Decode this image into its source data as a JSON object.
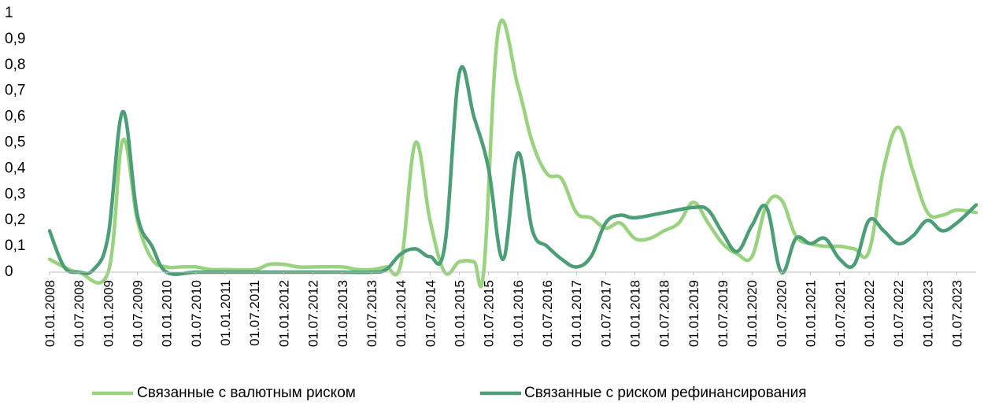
{
  "chart_data": {
    "type": "line",
    "title": "",
    "xlabel": "",
    "ylabel": "",
    "ylim": [
      0,
      1
    ],
    "yticks": [
      "0",
      "0,1",
      "0,2",
      "0,3",
      "0,4",
      "0,5",
      "0,6",
      "0,7",
      "0,8",
      "0,9",
      "1"
    ],
    "x_range": [
      2008.0,
      2023.83
    ],
    "xticks": [
      {
        "x": 2008.0,
        "label": "01.01.2008"
      },
      {
        "x": 2008.5,
        "label": "01.07.2008"
      },
      {
        "x": 2009.0,
        "label": "01.01.2009"
      },
      {
        "x": 2009.5,
        "label": "01.07.2009"
      },
      {
        "x": 2010.0,
        "label": "01.01.2010"
      },
      {
        "x": 2010.5,
        "label": "01.07.2010"
      },
      {
        "x": 2011.0,
        "label": "01.01.2011"
      },
      {
        "x": 2011.5,
        "label": "01.07.2011"
      },
      {
        "x": 2012.0,
        "label": "01.01.2012"
      },
      {
        "x": 2012.5,
        "label": "01.07.2012"
      },
      {
        "x": 2013.0,
        "label": "01.01.2013"
      },
      {
        "x": 2013.5,
        "label": "01.07.2013"
      },
      {
        "x": 2014.0,
        "label": "01.01.2014"
      },
      {
        "x": 2014.5,
        "label": "01.07.2014"
      },
      {
        "x": 2015.0,
        "label": "01.01.2015"
      },
      {
        "x": 2015.5,
        "label": "01.07.2015"
      },
      {
        "x": 2016.0,
        "label": "01.01.2016"
      },
      {
        "x": 2016.5,
        "label": "01.07.2016"
      },
      {
        "x": 2017.0,
        "label": "01.01.2017"
      },
      {
        "x": 2017.5,
        "label": "01.07.2017"
      },
      {
        "x": 2018.0,
        "label": "01.01.2018"
      },
      {
        "x": 2018.5,
        "label": "01.07.2018"
      },
      {
        "x": 2019.0,
        "label": "01.01.2019"
      },
      {
        "x": 2019.5,
        "label": "01.07.2019"
      },
      {
        "x": 2020.0,
        "label": "01.01.2020"
      },
      {
        "x": 2020.5,
        "label": "01.07.2020"
      },
      {
        "x": 2021.0,
        "label": "01.01.2021"
      },
      {
        "x": 2021.5,
        "label": "01.07.2021"
      },
      {
        "x": 2022.0,
        "label": "01.01.2022"
      },
      {
        "x": 2022.5,
        "label": "01.07.2022"
      },
      {
        "x": 2023.0,
        "label": "01.01.2023"
      },
      {
        "x": 2023.5,
        "label": "01.07.2023"
      }
    ],
    "grid": false,
    "legend_position": "bottom",
    "series": [
      {
        "name": "Связанные с валютным риском",
        "color": "#9ad37f",
        "points": [
          [
            2008.0,
            0.05
          ],
          [
            2008.25,
            0.02
          ],
          [
            2008.5,
            0.0
          ],
          [
            2009.0,
            0.0
          ],
          [
            2009.25,
            0.51
          ],
          [
            2009.5,
            0.2
          ],
          [
            2009.75,
            0.05
          ],
          [
            2010.0,
            0.02
          ],
          [
            2010.25,
            0.02
          ],
          [
            2010.5,
            0.02
          ],
          [
            2010.75,
            0.01
          ],
          [
            2011.0,
            0.01
          ],
          [
            2011.5,
            0.01
          ],
          [
            2011.75,
            0.03
          ],
          [
            2012.0,
            0.03
          ],
          [
            2012.25,
            0.02
          ],
          [
            2012.5,
            0.02
          ],
          [
            2013.0,
            0.02
          ],
          [
            2013.25,
            0.01
          ],
          [
            2013.5,
            0.01
          ],
          [
            2013.75,
            0.02
          ],
          [
            2014.0,
            0.03
          ],
          [
            2014.25,
            0.5
          ],
          [
            2014.5,
            0.2
          ],
          [
            2014.75,
            0.0
          ],
          [
            2015.0,
            0.04
          ],
          [
            2015.25,
            0.04
          ],
          [
            2015.42,
            0.01
          ],
          [
            2015.67,
            0.94
          ],
          [
            2016.0,
            0.72
          ],
          [
            2016.25,
            0.5
          ],
          [
            2016.5,
            0.38
          ],
          [
            2016.75,
            0.36
          ],
          [
            2017.0,
            0.23
          ],
          [
            2017.25,
            0.21
          ],
          [
            2017.5,
            0.17
          ],
          [
            2017.75,
            0.19
          ],
          [
            2018.0,
            0.13
          ],
          [
            2018.25,
            0.13
          ],
          [
            2018.5,
            0.16
          ],
          [
            2018.75,
            0.19
          ],
          [
            2019.0,
            0.27
          ],
          [
            2019.25,
            0.19
          ],
          [
            2019.5,
            0.11
          ],
          [
            2019.75,
            0.07
          ],
          [
            2020.0,
            0.06
          ],
          [
            2020.25,
            0.26
          ],
          [
            2020.5,
            0.28
          ],
          [
            2020.75,
            0.14
          ],
          [
            2021.0,
            0.11
          ],
          [
            2021.25,
            0.1
          ],
          [
            2021.5,
            0.1
          ],
          [
            2021.75,
            0.09
          ],
          [
            2022.0,
            0.08
          ],
          [
            2022.25,
            0.4
          ],
          [
            2022.5,
            0.56
          ],
          [
            2022.75,
            0.39
          ],
          [
            2023.0,
            0.23
          ],
          [
            2023.25,
            0.22
          ],
          [
            2023.5,
            0.24
          ],
          [
            2023.83,
            0.23
          ]
        ]
      },
      {
        "name": "Связанные с риском рефинансирования",
        "color": "#4b9e75",
        "points": [
          [
            2008.0,
            0.16
          ],
          [
            2008.25,
            0.02
          ],
          [
            2008.5,
            0.0
          ],
          [
            2008.75,
            0.01
          ],
          [
            2009.0,
            0.14
          ],
          [
            2009.25,
            0.62
          ],
          [
            2009.5,
            0.22
          ],
          [
            2009.75,
            0.1
          ],
          [
            2010.0,
            0.0
          ],
          [
            2010.5,
            0.0
          ],
          [
            2011.0,
            0.0
          ],
          [
            2011.5,
            0.0
          ],
          [
            2012.0,
            0.0
          ],
          [
            2012.5,
            0.0
          ],
          [
            2013.0,
            0.0
          ],
          [
            2013.5,
            0.0
          ],
          [
            2013.75,
            0.01
          ],
          [
            2014.0,
            0.07
          ],
          [
            2014.25,
            0.09
          ],
          [
            2014.5,
            0.06
          ],
          [
            2014.75,
            0.1
          ],
          [
            2015.0,
            0.77
          ],
          [
            2015.25,
            0.6
          ],
          [
            2015.5,
            0.4
          ],
          [
            2015.75,
            0.05
          ],
          [
            2016.0,
            0.46
          ],
          [
            2016.25,
            0.16
          ],
          [
            2016.5,
            0.1
          ],
          [
            2016.75,
            0.05
          ],
          [
            2017.0,
            0.02
          ],
          [
            2017.25,
            0.06
          ],
          [
            2017.5,
            0.19
          ],
          [
            2017.75,
            0.22
          ],
          [
            2018.0,
            0.21
          ],
          [
            2018.5,
            0.23
          ],
          [
            2019.0,
            0.25
          ],
          [
            2019.25,
            0.24
          ],
          [
            2019.5,
            0.15
          ],
          [
            2019.75,
            0.08
          ],
          [
            2020.0,
            0.18
          ],
          [
            2020.25,
            0.25
          ],
          [
            2020.5,
            0.0
          ],
          [
            2020.75,
            0.13
          ],
          [
            2021.0,
            0.11
          ],
          [
            2021.25,
            0.13
          ],
          [
            2021.5,
            0.05
          ],
          [
            2021.75,
            0.03
          ],
          [
            2022.0,
            0.2
          ],
          [
            2022.25,
            0.16
          ],
          [
            2022.5,
            0.11
          ],
          [
            2022.75,
            0.14
          ],
          [
            2023.0,
            0.2
          ],
          [
            2023.25,
            0.16
          ],
          [
            2023.5,
            0.19
          ],
          [
            2023.83,
            0.26
          ]
        ]
      }
    ]
  }
}
